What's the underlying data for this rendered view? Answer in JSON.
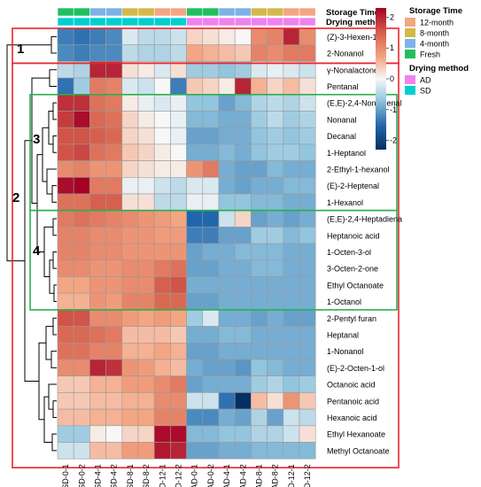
{
  "chart_data": {
    "type": "heatmap",
    "columns": [
      "SD-0-1",
      "SD-0-2",
      "SD-4-1",
      "SD-4-2",
      "SD-8-1",
      "SD-8-2",
      "SD-12-1",
      "SD-12-2",
      "AD-0-1",
      "AD-0-2",
      "AD-4-1",
      "AD-4-2",
      "AD-8-1",
      "AD-8-2",
      "AD-12-1",
      "AD-12-2"
    ],
    "rows": [
      "(Z)-3-Hexen-1-ol",
      "2-Nonanol",
      "γ-Nonalactone",
      "Pentanal",
      "(E,E)-2,4-Nonadienal",
      "Nonanal",
      "Decanal",
      "1-Heptanol",
      "2-Ethyl-1-hexanol",
      "(E)-2-Heptenal",
      "1-Hexanol",
      "(E,E)-2,4-Heptadiena",
      "Heptanoic acid",
      "1-Octen-3-ol",
      "3-Octen-2-one",
      "Ethyl Octanoate",
      "1-Octanol",
      "2-Pentyl furan",
      "Heptanal",
      "1-Nonanol",
      "(E)-2-Octen-1-ol",
      "Octanoic acid",
      "Pentanoic acid",
      "Hexanoic acid",
      "Ethyl Hexanoate",
      "Methyl Octanoate"
    ],
    "values": [
      [
        -1.3,
        -1.4,
        -1.3,
        -1.2,
        -0.2,
        -0.4,
        -0.4,
        -0.3,
        0.3,
        0.2,
        0.1,
        0.0,
        1.0,
        1.1,
        2.0,
        1.0
      ],
      [
        -1.2,
        -1.3,
        -1.2,
        -1.2,
        -0.4,
        -0.5,
        -0.5,
        -0.4,
        0.7,
        0.6,
        0.5,
        0.4,
        1.1,
        1.0,
        1.2,
        1.2
      ],
      [
        -0.4,
        -0.5,
        2.0,
        2.0,
        0.2,
        0.1,
        -0.2,
        0.2,
        -0.6,
        -0.6,
        -0.7,
        -0.6,
        -0.2,
        -0.1,
        -0.2,
        -0.3
      ],
      [
        -1.4,
        -0.6,
        1.2,
        1.1,
        -0.2,
        -0.3,
        0.0,
        -1.3,
        0.4,
        0.3,
        0.1,
        2.0,
        0.6,
        0.3,
        0.5,
        0.2
      ],
      [
        1.9,
        1.9,
        1.3,
        1.2,
        0.1,
        -0.1,
        -0.2,
        -0.1,
        -0.7,
        -0.7,
        -1.0,
        -0.8,
        -0.5,
        -0.4,
        -0.5,
        -0.3
      ],
      [
        1.8,
        2.2,
        1.4,
        1.3,
        0.3,
        0.1,
        0.0,
        -0.1,
        -0.8,
        -0.8,
        -0.9,
        -0.9,
        -0.6,
        -0.4,
        -0.6,
        -0.5
      ],
      [
        1.6,
        1.6,
        1.5,
        1.4,
        0.3,
        0.2,
        0.0,
        -0.1,
        -1.0,
        -1.0,
        -0.9,
        -0.9,
        -0.7,
        -0.6,
        -0.7,
        -0.6
      ],
      [
        1.6,
        1.7,
        1.3,
        1.2,
        0.4,
        0.3,
        0.1,
        0.0,
        -0.9,
        -0.9,
        -0.8,
        -0.9,
        -0.7,
        -0.6,
        -0.6,
        -0.7
      ],
      [
        1.0,
        1.1,
        0.9,
        0.9,
        0.3,
        0.2,
        0.1,
        0.1,
        0.9,
        1.2,
        -0.9,
        -1.0,
        -1.0,
        -0.8,
        -0.9,
        -0.9
      ],
      [
        2.2,
        2.3,
        1.2,
        1.2,
        -0.1,
        -0.1,
        -0.3,
        -0.4,
        -0.2,
        -0.2,
        -0.9,
        -1.0,
        -0.9,
        -0.9,
        -0.8,
        -0.8
      ],
      [
        1.3,
        1.3,
        1.5,
        1.5,
        0.2,
        0.2,
        -0.4,
        -0.4,
        -0.1,
        -0.1,
        -0.7,
        -0.7,
        -0.8,
        -0.8,
        -0.9,
        -0.9
      ],
      [
        1.2,
        1.3,
        1.2,
        1.1,
        1.0,
        0.9,
        0.8,
        0.7,
        -1.5,
        -1.5,
        -0.3,
        0.3,
        -1.0,
        -0.9,
        -1.0,
        -0.9
      ],
      [
        1.1,
        1.1,
        1.0,
        1.0,
        0.9,
        0.9,
        0.8,
        0.8,
        -1.3,
        -1.3,
        -1.0,
        -1.0,
        -0.6,
        -0.6,
        -0.8,
        -0.7
      ],
      [
        1.1,
        1.1,
        1.0,
        1.0,
        0.9,
        0.9,
        0.9,
        0.9,
        -1.0,
        -0.9,
        -0.9,
        -0.8,
        -0.8,
        -0.8,
        -0.9,
        -0.9
      ],
      [
        1.0,
        1.0,
        0.9,
        0.9,
        1.0,
        1.0,
        1.2,
        1.3,
        -1.0,
        -1.0,
        -0.9,
        -0.9,
        -0.8,
        -0.8,
        -0.9,
        -0.9
      ],
      [
        0.7,
        0.7,
        0.9,
        0.9,
        1.0,
        1.0,
        1.5,
        1.6,
        -0.9,
        -0.9,
        -0.9,
        -0.9,
        -0.9,
        -0.9,
        -0.9,
        -0.9
      ],
      [
        0.6,
        0.6,
        0.9,
        0.8,
        1.1,
        1.1,
        1.4,
        1.4,
        -1.0,
        -1.0,
        -0.9,
        -0.9,
        -0.9,
        -0.9,
        -0.9,
        -0.9
      ],
      [
        1.6,
        1.6,
        1.0,
        1.0,
        0.8,
        0.7,
        0.8,
        0.7,
        -0.6,
        -0.2,
        -0.9,
        -0.9,
        -1.0,
        -0.9,
        -1.0,
        -1.0
      ],
      [
        1.4,
        1.4,
        1.3,
        1.2,
        0.5,
        0.5,
        0.5,
        0.4,
        -0.9,
        -0.9,
        -0.8,
        -0.8,
        -0.9,
        -0.9,
        -0.9,
        -0.9
      ],
      [
        1.3,
        1.3,
        1.1,
        1.1,
        0.6,
        0.6,
        0.7,
        0.6,
        -1.0,
        -1.0,
        -0.9,
        -0.9,
        -0.9,
        -0.9,
        -0.9,
        -0.9
      ],
      [
        1.0,
        1.0,
        2.0,
        1.9,
        0.9,
        0.8,
        0.6,
        0.5,
        -0.9,
        -1.0,
        -1.0,
        -1.1,
        -0.7,
        -0.8,
        -0.9,
        -0.9
      ],
      [
        0.4,
        0.4,
        0.6,
        0.6,
        0.8,
        0.8,
        1.0,
        1.2,
        -1.0,
        -0.9,
        -0.9,
        -0.9,
        -0.6,
        -0.5,
        -0.7,
        -0.6
      ],
      [
        0.4,
        0.4,
        0.5,
        0.5,
        0.6,
        0.6,
        1.0,
        1.0,
        -0.3,
        -0.3,
        -1.4,
        -2.3,
        0.5,
        0.2,
        0.9,
        0.4
      ],
      [
        0.5,
        0.5,
        0.6,
        0.6,
        0.7,
        0.7,
        1.1,
        1.1,
        -1.2,
        -1.2,
        -0.9,
        -1.0,
        -0.5,
        -1.0,
        -0.3,
        -0.4
      ],
      [
        -0.6,
        -0.6,
        0.1,
        0.0,
        0.3,
        0.3,
        2.2,
        2.2,
        -0.8,
        -0.8,
        -0.7,
        -0.7,
        -0.5,
        -0.5,
        -0.3,
        0.2
      ],
      [
        -0.3,
        -0.3,
        0.5,
        0.5,
        0.8,
        0.8,
        2.1,
        2.0,
        -1.0,
        -1.0,
        -0.9,
        -0.9,
        -0.8,
        -0.8,
        -0.8,
        -0.8
      ]
    ],
    "color_scale": {
      "min": -2.3,
      "max": 2.3,
      "ticks": [
        2,
        1,
        0,
        -1,
        -2
      ],
      "low_color": "#053061",
      "mid_color": "#f7f7f7",
      "high_color": "#a50026"
    },
    "annotation_rows": [
      {
        "label": "Storage Time",
        "values": [
          "Fresh",
          "Fresh",
          "4-month",
          "4-month",
          "8-month",
          "8-month",
          "12-month",
          "12-month",
          "Fresh",
          "Fresh",
          "4-month",
          "4-month",
          "8-month",
          "8-month",
          "12-month",
          "12-month"
        ]
      },
      {
        "label": "Drying method",
        "values": [
          "SD",
          "SD",
          "SD",
          "SD",
          "SD",
          "SD",
          "SD",
          "SD",
          "AD",
          "AD",
          "AD",
          "AD",
          "AD",
          "AD",
          "AD",
          "AD"
        ]
      }
    ],
    "legend": {
      "storage_title": "Storage Time",
      "storage_items": [
        {
          "label": "12-month",
          "color": "#f4a582"
        },
        {
          "label": "8-month",
          "color": "#d4b84a"
        },
        {
          "label": "4-month",
          "color": "#7db2e8"
        },
        {
          "label": "Fresh",
          "color": "#1fbf5f"
        }
      ],
      "drying_title": "Drying method",
      "drying_items": [
        {
          "label": "AD",
          "color": "#ee82ee"
        },
        {
          "label": "SD",
          "color": "#00d0d0"
        }
      ]
    },
    "cluster_labels": [
      "1",
      "2",
      "3",
      "4"
    ],
    "legend_placement": "right"
  }
}
